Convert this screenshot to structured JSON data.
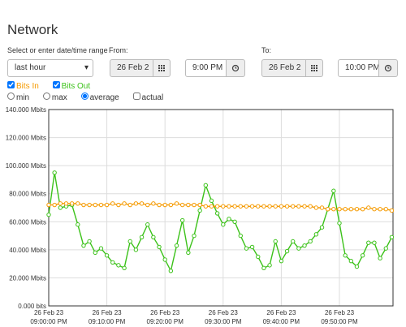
{
  "header": {
    "title": "Network"
  },
  "range": {
    "label": "Select or enter date/time range",
    "selected": "last hour"
  },
  "from": {
    "label": "From:",
    "date": "26 Feb 2",
    "time": "9:00 PM"
  },
  "to": {
    "label": "To:",
    "date": "26 Feb 2",
    "time": "10:00 PM"
  },
  "modes": [
    "min",
    "max",
    "average",
    "actual"
  ],
  "chart_data": {
    "type": "line",
    "grid": true,
    "x_date": "26 Feb 23",
    "categories": [
      "09:00:00 PM",
      null,
      null,
      null,
      null,
      null,
      null,
      null,
      null,
      null,
      "09:10:00 PM",
      null,
      null,
      null,
      null,
      null,
      null,
      null,
      null,
      null,
      "09:20:00 PM",
      null,
      null,
      null,
      null,
      null,
      null,
      null,
      null,
      null,
      "09:30:00 PM",
      null,
      null,
      null,
      null,
      null,
      null,
      null,
      null,
      null,
      "09:40:00 PM",
      null,
      null,
      null,
      null,
      null,
      null,
      null,
      null,
      null,
      "09:50:00 PM",
      null,
      null,
      null,
      null,
      null,
      null,
      null,
      null,
      null
    ],
    "series": [
      {
        "name": "Bits In",
        "color": "#f59a00",
        "values": [
          72,
          72,
          73,
          73,
          73,
          73,
          72,
          72,
          72,
          72,
          72,
          73,
          72,
          73,
          72,
          73,
          73,
          72,
          73,
          72,
          72,
          72,
          73,
          72,
          72,
          72,
          72,
          71,
          71,
          71,
          71,
          71,
          71,
          71,
          71,
          71,
          71,
          71,
          71,
          71,
          71,
          71,
          71,
          71,
          71,
          71,
          70,
          70,
          69,
          69,
          69,
          69,
          69,
          69,
          69,
          70,
          69,
          69,
          69,
          68
        ]
      },
      {
        "name": "Bits Out",
        "color": "#3cc21a",
        "values": [
          65,
          95,
          70,
          71,
          72,
          58,
          43,
          46,
          38,
          41,
          36,
          31,
          29,
          27,
          46,
          40,
          49,
          58,
          49,
          42,
          33,
          25,
          43,
          61,
          38,
          50,
          68,
          86,
          75,
          66,
          58,
          62,
          60,
          50,
          41,
          42,
          35,
          27,
          29,
          46,
          32,
          39,
          46,
          41,
          43,
          46,
          51,
          56,
          69,
          82,
          59,
          36,
          32,
          28,
          36,
          45,
          45,
          34,
          41,
          49
        ]
      }
    ],
    "ylim": [
      0,
      140
    ],
    "yticks": [
      {
        "value": 0,
        "label": "0.000 bits"
      },
      {
        "value": 20,
        "label": "20.000 Mbits"
      },
      {
        "value": 40,
        "label": "40.000 Mbits"
      },
      {
        "value": 60,
        "label": "60.000 Mbits"
      },
      {
        "value": 80,
        "label": "80.000 Mbits"
      },
      {
        "value": 100,
        "label": "100.000 Mbits"
      },
      {
        "value": 120,
        "label": "120.000 Mbits"
      },
      {
        "value": 140,
        "label": "140.000 Mbits"
      }
    ]
  }
}
